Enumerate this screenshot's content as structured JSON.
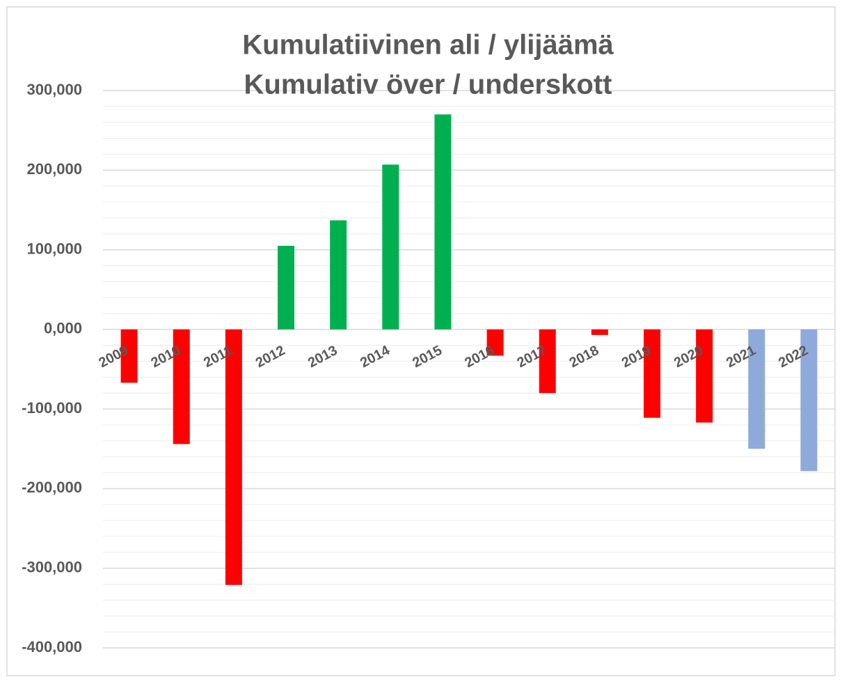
{
  "chart_data": {
    "type": "bar",
    "title": [
      "Kumulatiivinen ali / ylijäämä",
      "Kumulativ över / underskott"
    ],
    "categories": [
      "2009",
      "2010",
      "2011",
      "2012",
      "2013",
      "2014",
      "2015",
      "2016",
      "2017",
      "2018",
      "2019",
      "2020",
      "2021",
      "2022"
    ],
    "values": [
      -67000,
      -144000,
      -321000,
      105000,
      137000,
      207000,
      270000,
      -33000,
      -80000,
      -7000,
      -111000,
      -117000,
      -150000,
      -178000
    ],
    "colors": [
      "#ff0000",
      "#ff0000",
      "#ff0000",
      "#00b050",
      "#00b050",
      "#00b050",
      "#00b050",
      "#ff0000",
      "#ff0000",
      "#ff0000",
      "#ff0000",
      "#ff0000",
      "#8eaadb",
      "#8eaadb"
    ],
    "ylim": [
      -400000,
      300000
    ],
    "yticks": [
      {
        "value": 300000,
        "label": "300,000"
      },
      {
        "value": 200000,
        "label": "200,000"
      },
      {
        "value": 100000,
        "label": "100,000"
      },
      {
        "value": 0,
        "label": "0,000"
      },
      {
        "value": -100000,
        "label": "-100,000"
      },
      {
        "value": -200000,
        "label": "-200,000"
      },
      {
        "value": -300000,
        "label": "-300,000"
      },
      {
        "value": -400000,
        "label": "-400,000"
      }
    ],
    "grid": true
  }
}
